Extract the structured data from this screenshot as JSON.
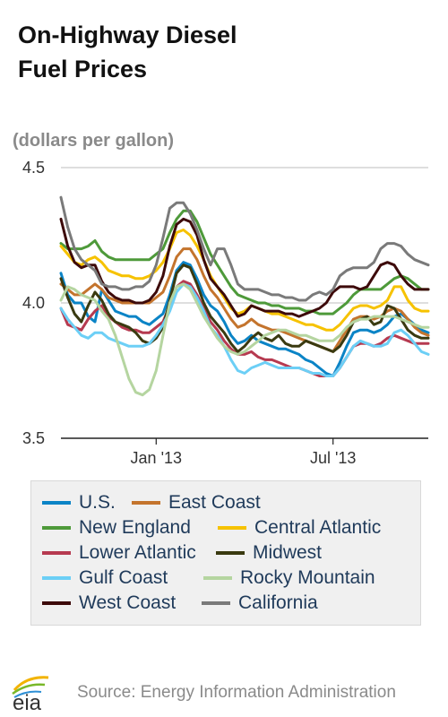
{
  "header": {
    "title_line1": "On-Highway Diesel",
    "title_line2": "Fuel Prices"
  },
  "footer": {
    "logo_text": "eia",
    "source": "Source: Energy Information Administration"
  },
  "chart_data": {
    "type": "line",
    "title": "On-Highway Diesel Fuel Prices",
    "ylabel": "(dollars per gallon)",
    "ylim": [
      3.5,
      4.5
    ],
    "yticks": [
      3.5,
      4.0,
      4.5
    ],
    "ytick_labels": [
      "3.5",
      "4.0",
      "4.5"
    ],
    "xticks": [
      {
        "label": "Jan '13",
        "week": 14
      },
      {
        "label": "Jul '13",
        "week": 40
      }
    ],
    "x_weeks": 54,
    "grid": "horizontal",
    "legend_position": "bottom",
    "series": [
      {
        "name": "U.S.",
        "color": "#0b84c6",
        "values": [
          4.11,
          4.03,
          4.0,
          4.0,
          3.95,
          3.93,
          4.05,
          4.01,
          3.97,
          3.96,
          3.95,
          3.95,
          3.93,
          3.92,
          3.94,
          3.96,
          4.03,
          4.12,
          4.15,
          4.14,
          4.09,
          4.03,
          3.99,
          3.97,
          3.93,
          3.88,
          3.85,
          3.86,
          3.88,
          3.86,
          3.85,
          3.84,
          3.83,
          3.83,
          3.82,
          3.81,
          3.79,
          3.78,
          3.76,
          3.74,
          3.73,
          3.78,
          3.84,
          3.89,
          3.9,
          3.9,
          3.89,
          3.9,
          3.92,
          3.95,
          3.96,
          3.94,
          3.92,
          3.9,
          3.89
        ]
      },
      {
        "name": "East Coast",
        "color": "#c4742d",
        "values": [
          4.07,
          4.05,
          4.03,
          4.03,
          4.05,
          4.07,
          4.05,
          4.02,
          4.01,
          4.0,
          4.0,
          4.0,
          4.0,
          4.0,
          4.02,
          4.04,
          4.1,
          4.17,
          4.2,
          4.2,
          4.16,
          4.1,
          4.05,
          4.02,
          3.98,
          3.94,
          3.91,
          3.92,
          3.94,
          3.92,
          3.91,
          3.9,
          3.9,
          3.89,
          3.88,
          3.87,
          3.86,
          3.85,
          3.84,
          3.83,
          3.82,
          3.86,
          3.9,
          3.94,
          3.95,
          3.95,
          3.94,
          3.95,
          3.97,
          3.98,
          3.97,
          3.94,
          3.91,
          3.89,
          3.88
        ]
      },
      {
        "name": "New England",
        "color": "#4e9a3a",
        "values": [
          4.22,
          4.2,
          4.2,
          4.2,
          4.21,
          4.23,
          4.19,
          4.17,
          4.16,
          4.16,
          4.16,
          4.16,
          4.16,
          4.16,
          4.18,
          4.2,
          4.26,
          4.31,
          4.34,
          4.34,
          4.3,
          4.24,
          4.18,
          4.14,
          4.1,
          4.06,
          4.03,
          4.02,
          4.01,
          4.0,
          4.0,
          3.99,
          3.99,
          3.98,
          3.98,
          3.98,
          3.97,
          3.97,
          3.96,
          3.96,
          3.96,
          3.98,
          4.0,
          4.03,
          4.05,
          4.05,
          4.05,
          4.05,
          4.07,
          4.09,
          4.1,
          4.09,
          4.07,
          4.05,
          4.05
        ]
      },
      {
        "name": "Central Atlantic",
        "color": "#f6c200",
        "values": [
          4.21,
          4.18,
          4.15,
          4.14,
          4.16,
          4.17,
          4.15,
          4.12,
          4.11,
          4.1,
          4.1,
          4.09,
          4.09,
          4.1,
          4.12,
          4.15,
          4.2,
          4.26,
          4.27,
          4.25,
          4.21,
          4.16,
          4.1,
          4.06,
          4.02,
          3.98,
          3.96,
          3.97,
          3.99,
          3.98,
          3.97,
          3.96,
          3.96,
          3.95,
          3.94,
          3.93,
          3.92,
          3.92,
          3.91,
          3.9,
          3.9,
          3.92,
          3.95,
          3.98,
          3.99,
          3.99,
          3.98,
          3.99,
          4.01,
          4.06,
          4.06,
          4.01,
          3.98,
          3.97,
          3.97
        ]
      },
      {
        "name": "Lower Atlantic",
        "color": "#b63a50",
        "values": [
          3.98,
          3.92,
          3.91,
          3.9,
          3.94,
          3.97,
          3.99,
          3.95,
          3.93,
          3.91,
          3.9,
          3.9,
          3.89,
          3.89,
          3.91,
          3.93,
          3.99,
          4.06,
          4.08,
          4.07,
          4.03,
          3.98,
          3.93,
          3.9,
          3.86,
          3.83,
          3.81,
          3.81,
          3.82,
          3.8,
          3.79,
          3.79,
          3.78,
          3.77,
          3.76,
          3.76,
          3.75,
          3.74,
          3.73,
          3.73,
          3.73,
          3.76,
          3.8,
          3.84,
          3.85,
          3.85,
          3.84,
          3.85,
          3.87,
          3.88,
          3.87,
          3.86,
          3.85,
          3.85,
          3.85
        ]
      },
      {
        "name": "Midwest",
        "color": "#3a3a10",
        "values": [
          4.09,
          4.02,
          3.96,
          3.93,
          3.99,
          4.04,
          4.01,
          3.96,
          3.93,
          3.92,
          3.91,
          3.89,
          3.86,
          3.85,
          3.87,
          3.91,
          4.01,
          4.11,
          4.14,
          4.13,
          4.07,
          4.0,
          3.95,
          3.92,
          3.89,
          3.85,
          3.82,
          3.84,
          3.87,
          3.89,
          3.87,
          3.86,
          3.88,
          3.85,
          3.84,
          3.84,
          3.86,
          3.85,
          3.84,
          3.83,
          3.82,
          3.84,
          3.88,
          3.93,
          3.94,
          3.95,
          3.92,
          3.93,
          3.99,
          3.98,
          3.94,
          3.9,
          3.88,
          3.87,
          3.87
        ]
      },
      {
        "name": "Gulf Coast",
        "color": "#6ccff6",
        "values": [
          3.98,
          3.94,
          3.91,
          3.88,
          3.87,
          3.89,
          3.89,
          3.87,
          3.86,
          3.85,
          3.84,
          3.84,
          3.84,
          3.85,
          3.88,
          3.92,
          3.97,
          4.04,
          4.07,
          4.06,
          4.02,
          3.97,
          3.91,
          3.88,
          3.84,
          3.79,
          3.75,
          3.74,
          3.76,
          3.77,
          3.78,
          3.77,
          3.76,
          3.76,
          3.76,
          3.76,
          3.75,
          3.74,
          3.74,
          3.73,
          3.73,
          3.76,
          3.8,
          3.84,
          3.86,
          3.85,
          3.84,
          3.84,
          3.85,
          3.89,
          3.9,
          3.88,
          3.85,
          3.82,
          3.81
        ]
      },
      {
        "name": "Rocky Mountain",
        "color": "#b5d5a0",
        "values": [
          4.01,
          4.06,
          4.05,
          4.03,
          4.02,
          4.01,
          3.97,
          3.94,
          3.88,
          3.8,
          3.72,
          3.67,
          3.66,
          3.68,
          3.75,
          3.88,
          4.0,
          4.06,
          4.07,
          4.05,
          4.0,
          3.95,
          3.91,
          3.87,
          3.84,
          3.82,
          3.81,
          3.82,
          3.84,
          3.86,
          3.88,
          3.89,
          3.9,
          3.9,
          3.89,
          3.88,
          3.88,
          3.87,
          3.86,
          3.86,
          3.86,
          3.88,
          3.91,
          3.93,
          3.94,
          3.94,
          3.95,
          3.95,
          3.95,
          3.95,
          3.94,
          3.93,
          3.92,
          3.91,
          3.91
        ]
      },
      {
        "name": "West Coast",
        "color": "#3d0a0a",
        "values": [
          4.31,
          4.21,
          4.15,
          4.13,
          4.14,
          4.14,
          4.08,
          4.04,
          4.02,
          4.01,
          4.01,
          4.0,
          4.0,
          4.01,
          4.04,
          4.1,
          4.21,
          4.29,
          4.31,
          4.3,
          4.25,
          4.16,
          4.09,
          4.06,
          4.03,
          3.99,
          3.95,
          3.96,
          3.99,
          3.98,
          3.97,
          3.97,
          3.97,
          3.96,
          3.96,
          3.95,
          3.96,
          3.97,
          3.98,
          4.0,
          4.04,
          4.06,
          4.06,
          4.06,
          4.05,
          4.06,
          4.1,
          4.14,
          4.15,
          4.14,
          4.1,
          4.07,
          4.05,
          4.05,
          4.05
        ]
      },
      {
        "name": "California",
        "color": "#7a7a7a",
        "values": [
          4.39,
          4.28,
          4.2,
          4.16,
          4.14,
          4.12,
          4.07,
          4.06,
          4.06,
          4.05,
          4.05,
          4.06,
          4.06,
          4.08,
          4.14,
          4.24,
          4.35,
          4.37,
          4.37,
          4.33,
          4.27,
          4.2,
          4.14,
          4.2,
          4.2,
          4.14,
          4.07,
          4.05,
          4.05,
          4.05,
          4.04,
          4.03,
          4.03,
          4.02,
          4.02,
          4.01,
          4.01,
          4.03,
          4.04,
          4.03,
          4.05,
          4.1,
          4.12,
          4.13,
          4.13,
          4.13,
          4.15,
          4.2,
          4.22,
          4.22,
          4.21,
          4.18,
          4.16,
          4.15,
          4.14
        ]
      }
    ]
  }
}
